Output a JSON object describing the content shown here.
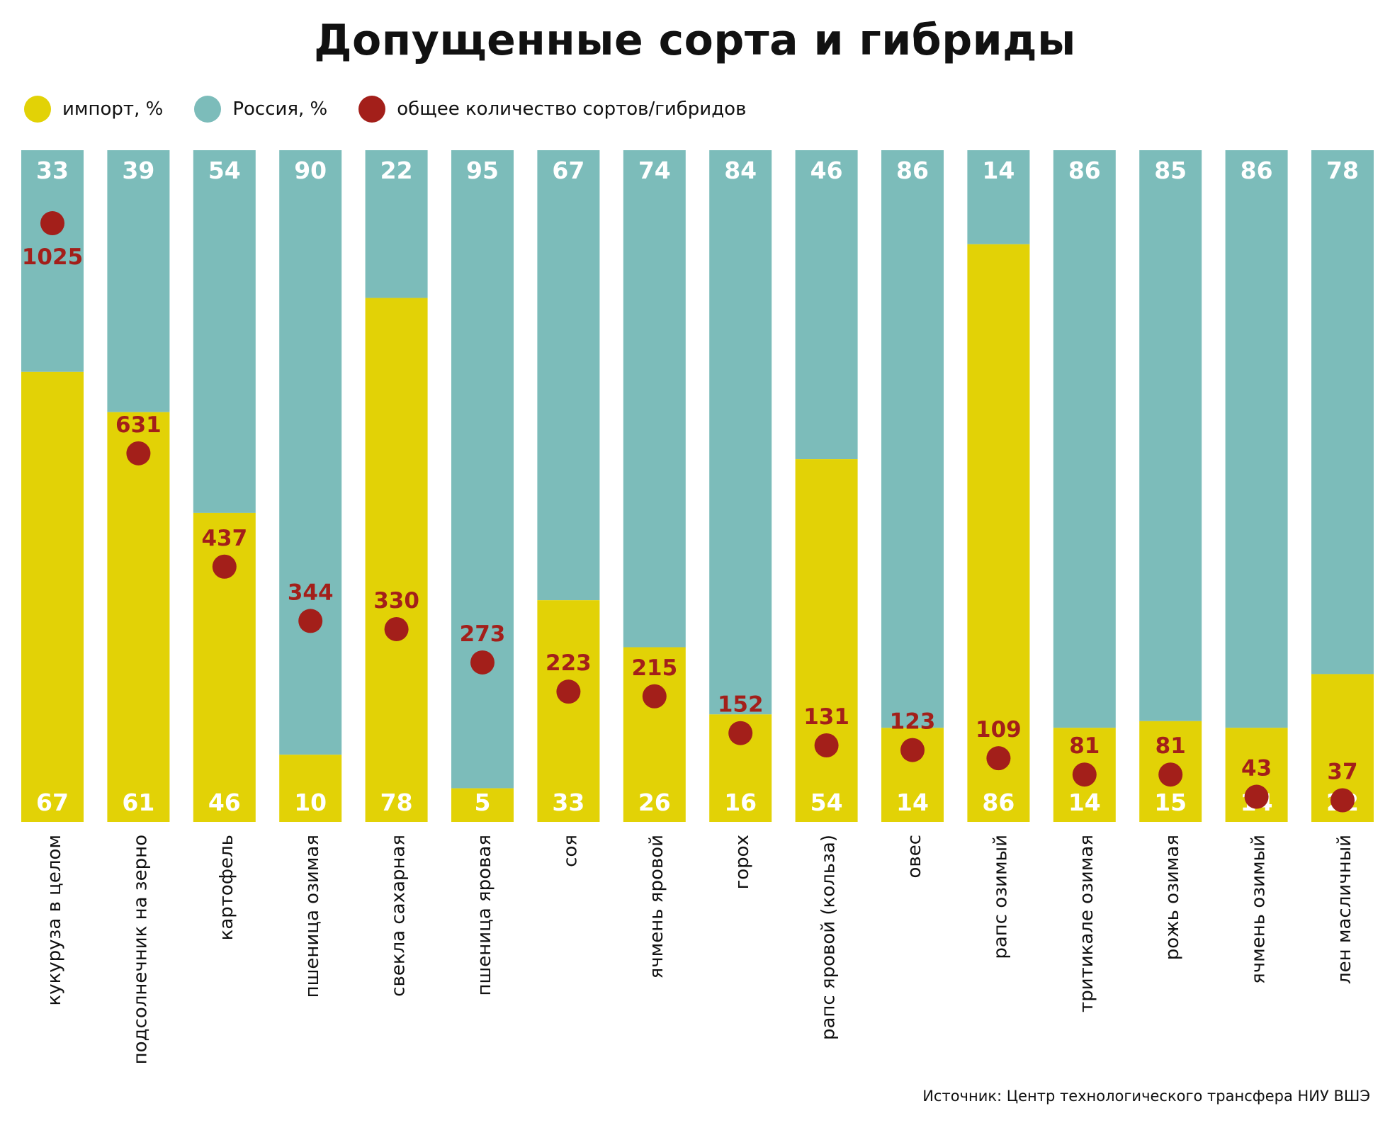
{
  "title": "Допущенные сорта и гибриды",
  "legend": [
    {
      "label": "импорт, %",
      "color": "#e2d206"
    },
    {
      "label": "Россия, %",
      "color": "#7cbcba"
    },
    {
      "label": "общее количество сортов/гибридов",
      "color": "#a31f1a"
    }
  ],
  "source": "Источник: Центр технологического трансфера  НИУ  ВШЭ",
  "colors": {
    "import": "#e2d206",
    "russia": "#7cbcba",
    "total": "#a31f1a",
    "label": "#ffffff"
  },
  "chart_data": {
    "type": "bar",
    "stacked": "100%",
    "categories": [
      "кукуруза в целом",
      "подсолнечник на зерно",
      "картофель",
      "пшеница озимая",
      "свекла сахарная",
      "пшеница яровая",
      "соя",
      "ячмень яровой",
      "горох",
      "рапс яровой (кольза)",
      "овес",
      "рапс озимый",
      "тритикале озимая",
      "рожь озимая",
      "ячмень озимый",
      "лен масличный"
    ],
    "series": [
      {
        "name": "импорт, %",
        "values": [
          67,
          61,
          46,
          10,
          78,
          5,
          33,
          26,
          16,
          54,
          14,
          86,
          14,
          15,
          14,
          22
        ]
      },
      {
        "name": "Россия, %",
        "values": [
          33,
          39,
          54,
          90,
          22,
          95,
          67,
          74,
          84,
          46,
          86,
          14,
          86,
          85,
          86,
          78
        ]
      },
      {
        "name": "общее количество сортов/гибридов",
        "type": "scatter",
        "values": [
          1025,
          631,
          437,
          344,
          330,
          273,
          223,
          215,
          152,
          131,
          123,
          109,
          81,
          81,
          43,
          37
        ]
      }
    ],
    "ylim": [
      0,
      100
    ],
    "grid": false,
    "legend_position": "top-left"
  }
}
